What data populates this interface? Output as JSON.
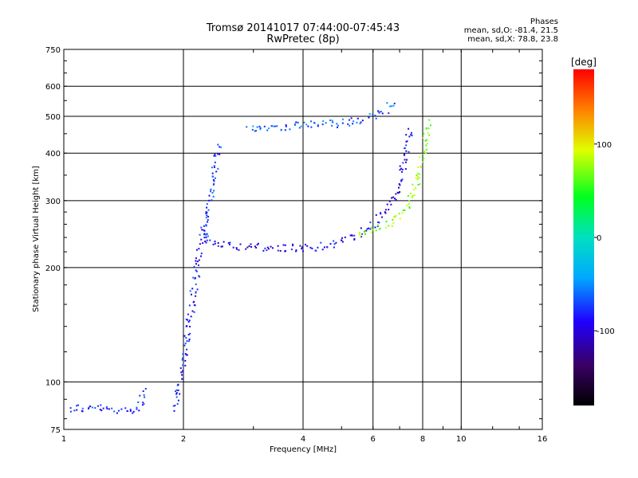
{
  "chart_data": {
    "type": "scatter",
    "title": "Tromsø 20141017 07:44:00-07:45:43",
    "subtitle": "RwPretec (8p)",
    "xlabel": "Frequency [MHz]",
    "ylabel": "Stationary phase Virtual Height [km]",
    "x_scale": "log",
    "y_scale": "log",
    "xlim": [
      1,
      16
    ],
    "ylim": [
      75,
      750
    ],
    "x_ticks": [
      "1",
      "2",
      "4",
      "6",
      "8",
      "10",
      "16"
    ],
    "y_ticks": [
      "75",
      "100",
      "200",
      "300",
      "400",
      "500",
      "600",
      "750"
    ],
    "grid": true,
    "stats_header": "Phases",
    "stats_lines": [
      "mean, sd,O: -81.4, 21.5",
      "mean, sd,X: 78.8, 23.8"
    ],
    "colorbar": {
      "label": "[deg]",
      "ticks": [
        "100",
        "0",
        "-100"
      ],
      "range": [
        -180,
        180
      ],
      "colormap": "rainbow"
    },
    "traces": [
      {
        "type": "band",
        "description": "low E echoes",
        "x": [
          1.03,
          1.07,
          1.12,
          1.2,
          1.35,
          1.45,
          1.55,
          1.6
        ],
        "y": [
          85,
          86,
          85,
          86,
          84,
          85,
          86,
          97
        ],
        "phase": -80
      },
      {
        "type": "band",
        "description": "steep F trace",
        "x": [
          1.9,
          1.95,
          2.0,
          2.05,
          2.1,
          2.15,
          2.2,
          2.25
        ],
        "y": [
          85,
          100,
          120,
          140,
          165,
          195,
          225,
          260
        ],
        "phase": -85
      },
      {
        "type": "band",
        "description": "O trace",
        "x": [
          2.25,
          2.4,
          2.6,
          3.0,
          3.4,
          3.8,
          4.2,
          4.6,
          5.0,
          5.5,
          6.0,
          6.5,
          6.9,
          7.2,
          7.4
        ],
        "y": [
          238,
          234,
          230,
          227,
          226,
          226,
          227,
          230,
          236,
          245,
          260,
          285,
          320,
          380,
          470
        ],
        "phase": -95
      },
      {
        "type": "band",
        "description": "X trace",
        "x": [
          5.5,
          6.0,
          6.5,
          7.0,
          7.4,
          7.7,
          7.9,
          8.1,
          8.2,
          8.3
        ],
        "y": [
          245,
          252,
          262,
          278,
          300,
          335,
          380,
          430,
          470,
          490
        ],
        "phase": 75
      },
      {
        "type": "band",
        "description": "upper trace",
        "x": [
          2.9,
          3.2,
          3.5,
          3.8,
          4.1,
          4.4,
          4.8,
          5.2,
          5.6,
          6.0,
          6.4,
          6.8
        ],
        "y": [
          468,
          470,
          472,
          474,
          476,
          478,
          480,
          484,
          490,
          500,
          520,
          550
        ],
        "phase": -65
      },
      {
        "type": "band",
        "description": "vertical band near 2.4 MHz",
        "x": [
          2.25,
          2.3,
          2.35,
          2.4,
          2.45
        ],
        "y": [
          240,
          280,
          330,
          380,
          430
        ],
        "phase": -75
      }
    ]
  }
}
